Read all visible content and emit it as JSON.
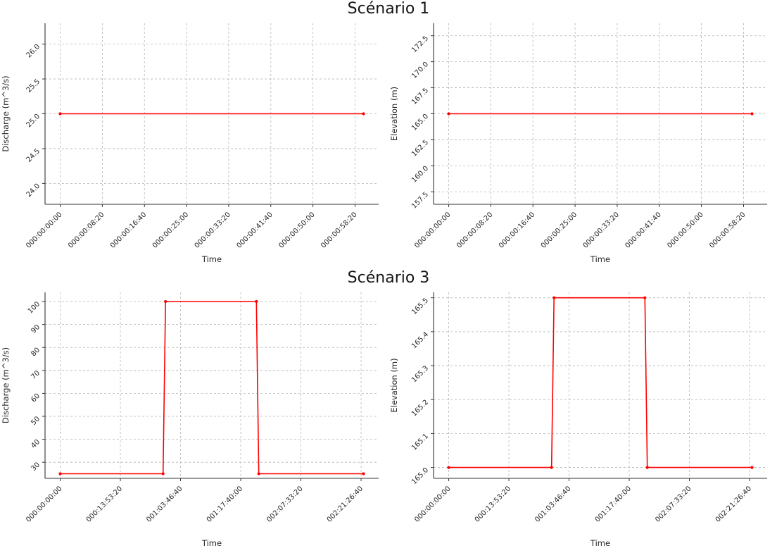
{
  "sections": [
    {
      "title": "Scénario 1"
    },
    {
      "title": "Scénario 3"
    }
  ],
  "chart_data": [
    {
      "type": "line",
      "scenario": "Scénario 1",
      "title": "",
      "xlabel": "Time",
      "ylabel": "Discharge (m^3/s)",
      "line_color": "#ff0000",
      "grid": true,
      "legend": "none",
      "xlim": [
        -180,
        3780
      ],
      "ylim": [
        23.7,
        26.3
      ],
      "xticks": {
        "values": [
          0,
          500,
          1000,
          1500,
          2000,
          2500,
          3000,
          3500
        ],
        "labels": [
          "000:00:00:00",
          "000:00:08:20",
          "000:00:16:40",
          "000:00:25:00",
          "000:00:33:20",
          "000:00:41:40",
          "000:00:50:00",
          "000:00:58:20"
        ]
      },
      "yticks": {
        "values": [
          24.0,
          24.5,
          25.0,
          25.5,
          26.0
        ],
        "labels": [
          "24.0",
          "24.5",
          "25.0",
          "25.5",
          "26.0"
        ]
      },
      "series": [
        {
          "name": "Discharge",
          "points": [
            [
              0,
              25.0
            ],
            [
              3600,
              25.0
            ]
          ]
        }
      ]
    },
    {
      "type": "line",
      "scenario": "Scénario 1",
      "title": "",
      "xlabel": "Time",
      "ylabel": "Elevation (m)",
      "line_color": "#ff0000",
      "grid": true,
      "legend": "none",
      "xlim": [
        -180,
        3780
      ],
      "ylim": [
        156.3,
        173.7
      ],
      "xticks": {
        "values": [
          0,
          500,
          1000,
          1500,
          2000,
          2500,
          3000,
          3500
        ],
        "labels": [
          "000:00:00:00",
          "000:00:08:20",
          "000:00:16:40",
          "000:00:25:00",
          "000:00:33:20",
          "000:00:41:40",
          "000:00:50:00",
          "000:00:58:20"
        ]
      },
      "yticks": {
        "values": [
          157.5,
          160.0,
          162.5,
          165.0,
          167.5,
          170.0,
          172.5
        ],
        "labels": [
          "157.5",
          "160.0",
          "162.5",
          "165.0",
          "167.5",
          "170.0",
          "172.5"
        ]
      },
      "series": [
        {
          "name": "Elevation",
          "points": [
            [
              0,
              165.0
            ],
            [
              3600,
              165.0
            ]
          ]
        }
      ]
    },
    {
      "type": "line",
      "scenario": "Scénario 3",
      "title": "",
      "xlabel": "Time",
      "ylabel": "Discharge (m^3/s)",
      "line_color": "#ff0000",
      "grid": true,
      "legend": "none",
      "xlim": [
        -12600,
        264600
      ],
      "ylim": [
        23,
        104
      ],
      "xticks": {
        "values": [
          0,
          50000,
          100000,
          150000,
          200000,
          250000
        ],
        "labels": [
          "000:00:00:00",
          "000:13:53:20",
          "001:03:46:40",
          "001:17:40:00",
          "002:07:33:20",
          "002:21:26:40"
        ]
      },
      "yticks": {
        "values": [
          30,
          40,
          50,
          60,
          70,
          80,
          90,
          100
        ],
        "labels": [
          "30",
          "40",
          "50",
          "60",
          "70",
          "80",
          "90",
          "100"
        ]
      },
      "series": [
        {
          "name": "Discharge",
          "points": [
            [
              0,
              25
            ],
            [
              85500,
              25
            ],
            [
              87500,
              100
            ],
            [
              163000,
              100
            ],
            [
              165000,
              25
            ],
            [
              252000,
              25
            ]
          ]
        }
      ]
    },
    {
      "type": "line",
      "scenario": "Scénario 3",
      "title": "",
      "xlabel": "Time",
      "ylabel": "Elevation (m)",
      "line_color": "#ff0000",
      "grid": true,
      "legend": "none",
      "xlim": [
        -12600,
        264600
      ],
      "ylim": [
        164.968,
        165.516
      ],
      "xticks": {
        "values": [
          0,
          50000,
          100000,
          150000,
          200000,
          250000
        ],
        "labels": [
          "000:00:00:00",
          "000:13:53:20",
          "001:03:46:40",
          "001:17:40:00",
          "002:07:33:20",
          "002:21:26:40"
        ]
      },
      "yticks": {
        "values": [
          165.0,
          165.1,
          165.2,
          165.3,
          165.4,
          165.5
        ],
        "labels": [
          "165.0",
          "165.1",
          "165.2",
          "165.3",
          "165.4",
          "165.5"
        ]
      },
      "series": [
        {
          "name": "Elevation",
          "points": [
            [
              0,
              165.0
            ],
            [
              85500,
              165.0
            ],
            [
              87500,
              165.5
            ],
            [
              163000,
              165.5
            ],
            [
              165000,
              165.0
            ],
            [
              252000,
              165.0
            ]
          ]
        }
      ]
    }
  ],
  "style": {
    "grid_color": "#b5b5b5",
    "spine_color": "#333333",
    "text_color": "#262626"
  }
}
